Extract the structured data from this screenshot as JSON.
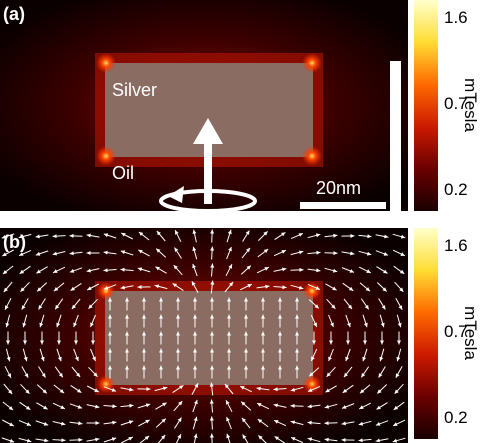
{
  "panels": [
    {
      "label": "(a)",
      "material_label": "Silver",
      "medium_label": "Oil",
      "scale_label": "20nm"
    },
    {
      "label": "(b)"
    }
  ],
  "colorbar": {
    "ticks": [
      "1.6",
      "0.7",
      "0.2"
    ],
    "unit": "mTesla",
    "colors": [
      "#ffffcc",
      "#ffdd33",
      "#ff6a00",
      "#cc1a00",
      "#6a0000",
      "#1a0000"
    ]
  },
  "colors": {
    "silver_block": "#8b6c62",
    "hotspot": "#ff4400",
    "arrow": "#ffffff"
  }
}
